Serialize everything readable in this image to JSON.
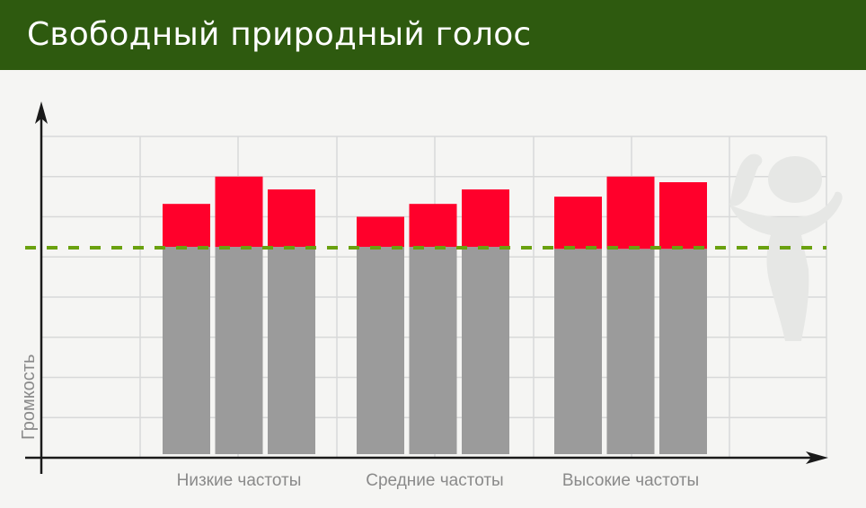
{
  "header": {
    "title": "Свободный природный голос"
  },
  "chart_data": {
    "type": "bar",
    "stacked": true,
    "title": "Свободный природный голос",
    "xlabel": "",
    "ylabel": "Громкость",
    "ylim": [
      0,
      8
    ],
    "grid": true,
    "y_tick_labels_shown": false,
    "categories": [
      "Низкие частоты",
      "Средние частоты",
      "Высокие частоты"
    ],
    "bars_per_category": 3,
    "series": [
      {
        "color": "#9b9b9b",
        "values": [
          [
            5.25,
            5.25,
            5.25
          ],
          [
            5.25,
            5.25,
            5.25
          ],
          [
            5.2,
            5.2,
            5.2
          ]
        ]
      },
      {
        "color": "#ff002b",
        "values": [
          [
            1.07,
            1.75,
            1.43
          ],
          [
            0.75,
            1.07,
            1.43
          ],
          [
            1.3,
            1.8,
            1.66
          ]
        ]
      }
    ],
    "reference_line": {
      "value": 5.23,
      "style": "dashed",
      "color": "#6aa10f"
    },
    "colors": {
      "axis": "#1a1a1a",
      "grid": "#d8d9d9",
      "background": "#f5f5f3",
      "header": "#2e5a0f"
    },
    "decoration": "silhouette of child with bird"
  }
}
